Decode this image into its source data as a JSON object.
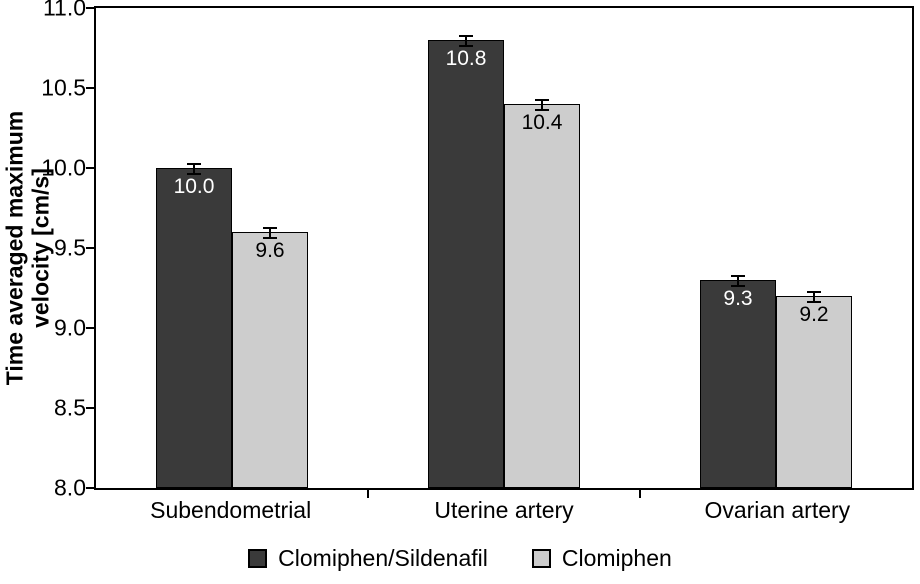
{
  "chart_data": {
    "type": "bar",
    "title": "",
    "xlabel": "",
    "ylabel": "Time averaged maximum velocity [cm/s]",
    "categories": [
      "Subendometrial",
      "Uterine artery",
      "Ovarian artery"
    ],
    "series": [
      {
        "name": "Clomiphen/Sildenafil",
        "color": "#3a3a3a",
        "label_color": "#ffffff",
        "values": [
          10.0,
          10.8,
          9.3
        ],
        "errors": [
          0.04,
          0.04,
          0.04
        ]
      },
      {
        "name": "Clomiphen",
        "color": "#cdcdcd",
        "label_color": "#000000",
        "values": [
          9.6,
          10.4,
          9.2
        ],
        "errors": [
          0.04,
          0.04,
          0.04
        ]
      }
    ],
    "ylim": [
      8.0,
      11.0
    ],
    "ytick_step": 0.5,
    "yticks": [
      "8.0",
      "8.5",
      "9.0",
      "9.5",
      "10.0",
      "10.5",
      "11.0"
    ],
    "grid": false,
    "legend_position": "bottom",
    "error_bars": true
  }
}
